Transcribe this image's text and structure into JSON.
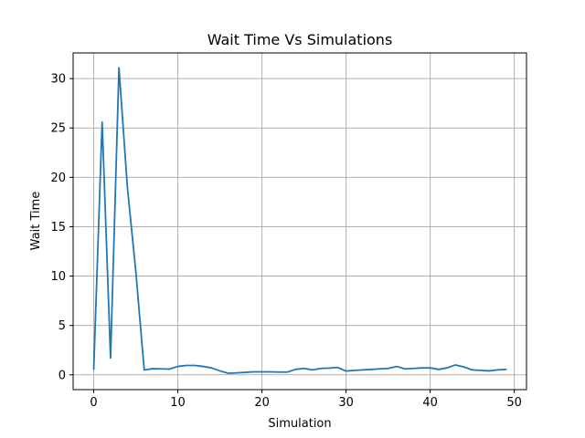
{
  "chart_data": {
    "type": "line",
    "title": "Wait Time Vs Simulations",
    "xlabel": "Simulation",
    "ylabel": "Wait Time",
    "xlim": [
      -2.45,
      51.45
    ],
    "ylim": [
      -1.5,
      32.6
    ],
    "xticks": [
      0,
      10,
      20,
      30,
      40,
      50
    ],
    "yticks": [
      0,
      5,
      10,
      15,
      20,
      25,
      30
    ],
    "grid": true,
    "line_color": "#1f77b4",
    "series": [
      {
        "x": [
          0,
          1,
          2,
          3,
          4,
          5,
          6,
          7,
          8,
          9,
          10,
          11,
          12,
          13,
          14,
          15,
          16,
          17,
          18,
          19,
          20,
          21,
          22,
          23,
          24,
          25,
          26,
          27,
          28,
          29,
          30,
          31,
          32,
          33,
          34,
          35,
          36,
          37,
          38,
          39,
          40,
          41,
          42,
          43,
          44,
          45,
          46,
          47,
          48,
          49
        ],
        "values": [
          0.6,
          25.6,
          1.7,
          31.1,
          19.0,
          10.5,
          0.5,
          0.62,
          0.6,
          0.58,
          0.85,
          0.95,
          0.95,
          0.85,
          0.7,
          0.4,
          0.15,
          0.2,
          0.25,
          0.3,
          0.3,
          0.3,
          0.28,
          0.28,
          0.55,
          0.65,
          0.5,
          0.65,
          0.68,
          0.75,
          0.38,
          0.45,
          0.5,
          0.55,
          0.6,
          0.65,
          0.85,
          0.6,
          0.65,
          0.7,
          0.7,
          0.55,
          0.7,
          1.0,
          0.8,
          0.5,
          0.45,
          0.4,
          0.5,
          0.55
        ]
      }
    ]
  }
}
